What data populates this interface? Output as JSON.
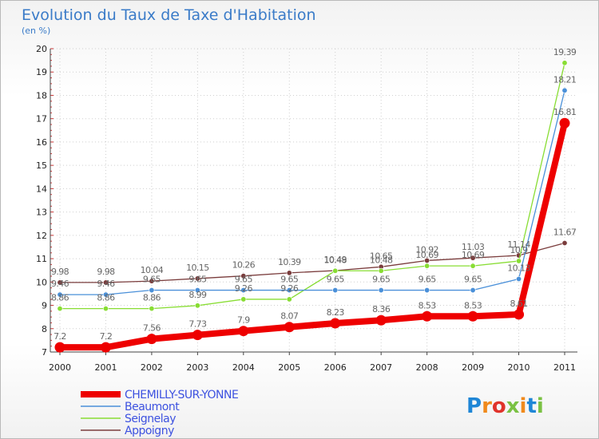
{
  "chart_data": {
    "type": "line",
    "title": "Evolution du Taux de Taxe d'Habitation",
    "subtitle": "(en %)",
    "xlabel": "",
    "ylabel": "",
    "x": [
      "2000",
      "2001",
      "2002",
      "2003",
      "2004",
      "2005",
      "2006",
      "2007",
      "2008",
      "2009",
      "2010",
      "2011"
    ],
    "ylim": [
      7,
      20
    ],
    "yticks": [
      "7",
      "8",
      "9",
      "10",
      "11",
      "12",
      "13",
      "14",
      "15",
      "16",
      "17",
      "18",
      "19",
      "20"
    ],
    "ytick_values": [
      7,
      8,
      9,
      10,
      11,
      12,
      13,
      14,
      15,
      16,
      17,
      18,
      19,
      20
    ],
    "legend_position": "bottom-left",
    "series": [
      {
        "name": "CHEMILLY-SUR-YONNE",
        "color": "#ee0000",
        "values": [
          7.2,
          7.2,
          7.56,
          7.73,
          7.9,
          8.07,
          8.23,
          8.36,
          8.53,
          8.53,
          8.61,
          16.81
        ],
        "labels": [
          "7.2",
          "7.2",
          "7.56",
          "7.73",
          "7.9",
          "8.07",
          "8.23",
          "8.36",
          "8.53",
          "8.53",
          "8.61",
          "16.81"
        ]
      },
      {
        "name": "Beaumont",
        "color": "#4a90d9",
        "values": [
          9.46,
          9.46,
          9.65,
          9.65,
          9.65,
          9.65,
          9.65,
          9.65,
          9.65,
          9.65,
          10.13,
          18.21
        ],
        "labels": [
          "9.46",
          "9.46",
          "9.65",
          "9.65",
          "9.65",
          "9.65",
          "9.65",
          "9.65",
          "9.65",
          "9.65",
          "10.13",
          "18.21"
        ]
      },
      {
        "name": "Seignelay",
        "color": "#88dd33",
        "values": [
          8.86,
          8.86,
          8.86,
          8.99,
          9.26,
          9.26,
          10.48,
          10.48,
          10.69,
          10.69,
          10.9,
          19.39
        ],
        "labels": [
          "8.86",
          "8.86",
          "8.86",
          "8.99",
          "9.26",
          "9.26",
          "10.48",
          "10.48",
          "10.69",
          "10.69",
          "10.9",
          "19.39"
        ]
      },
      {
        "name": "Appoigny",
        "color": "#7a3c3c",
        "values": [
          9.98,
          9.98,
          10.04,
          10.15,
          10.26,
          10.39,
          10.49,
          10.65,
          10.92,
          11.03,
          11.14,
          11.67
        ],
        "labels": [
          "9.98",
          "9.98",
          "10.04",
          "10.15",
          "10.26",
          "10.39",
          "10.49",
          "10.65",
          "10.92",
          "11.03",
          "11.14",
          "11.67"
        ]
      }
    ]
  },
  "logo": {
    "text": "Proxiti",
    "letters": [
      "P",
      "r",
      "o",
      "x",
      "i",
      "t",
      "i"
    ],
    "colors": [
      "#1f86d6",
      "#f08a1c",
      "#e0332b",
      "#7ac143",
      "#f08a1c",
      "#1f86d6",
      "#7ac143"
    ]
  }
}
